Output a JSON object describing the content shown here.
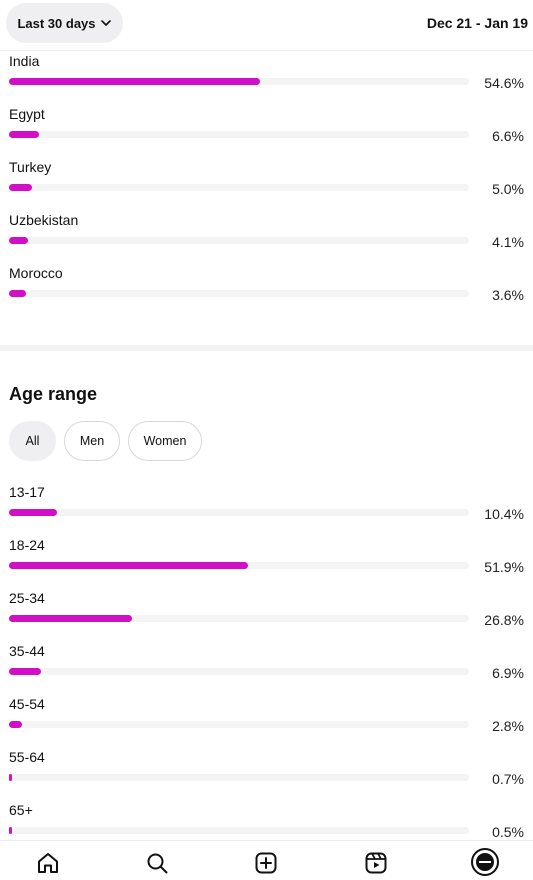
{
  "header": {
    "range_label": "Last 30 days",
    "date_range": "Dec 21 - Jan 19"
  },
  "countries": [
    {
      "label": "India",
      "percent_text": "54.6%",
      "value": 54.6
    },
    {
      "label": "Egypt",
      "percent_text": "6.6%",
      "value": 6.6
    },
    {
      "label": "Turkey",
      "percent_text": "5.0%",
      "value": 5.0
    },
    {
      "label": "Uzbekistan",
      "percent_text": "4.1%",
      "value": 4.1
    },
    {
      "label": "Morocco",
      "percent_text": "3.6%",
      "value": 3.6
    }
  ],
  "age_section": {
    "title": "Age range",
    "filters": [
      {
        "label": "All",
        "active": true
      },
      {
        "label": "Men",
        "active": false
      },
      {
        "label": "Women",
        "active": false
      }
    ],
    "rows": [
      {
        "label": "13-17",
        "percent_text": "10.4%",
        "value": 10.4
      },
      {
        "label": "18-24",
        "percent_text": "51.9%",
        "value": 51.9
      },
      {
        "label": "25-34",
        "percent_text": "26.8%",
        "value": 26.8
      },
      {
        "label": "35-44",
        "percent_text": "6.9%",
        "value": 6.9
      },
      {
        "label": "45-54",
        "percent_text": "2.8%",
        "value": 2.8
      },
      {
        "label": "55-64",
        "percent_text": "0.7%",
        "value": 0.7
      },
      {
        "label": "65+",
        "percent_text": "0.5%",
        "value": 0.5
      }
    ]
  },
  "bottom_nav": {
    "items": [
      "home-icon",
      "search-icon",
      "create-icon",
      "reels-icon",
      "profile-avatar"
    ]
  },
  "colors": {
    "bar_fill": "#d10fc6",
    "bar_track": "#f4f4f5"
  }
}
